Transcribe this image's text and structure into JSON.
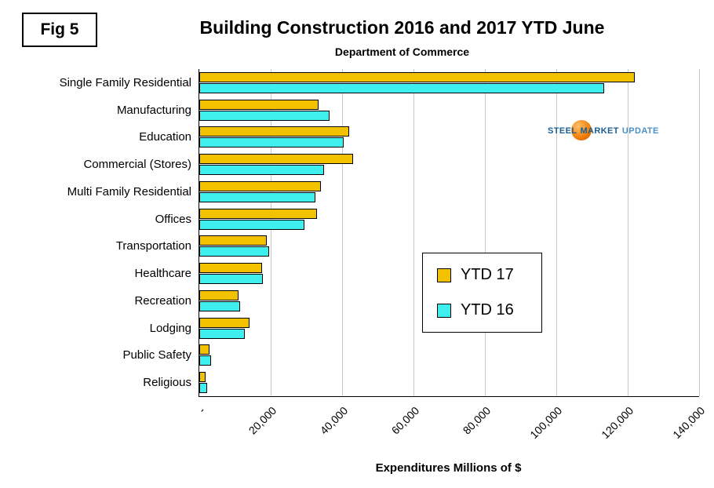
{
  "fig_label": "Fig 5",
  "logo": {
    "steel": "STEEL",
    "market": "MARKET",
    "update": "UPDATE"
  },
  "chart_data": {
    "type": "bar",
    "orientation": "horizontal",
    "title": "Building Construction 2016 and 2017 YTD June",
    "subtitle": "Department of Commerce",
    "xlabel": "Expenditures Millions of $",
    "xlim": [
      0,
      140000
    ],
    "x_tick_labels": [
      "-",
      "20,000",
      "40,000",
      "60,000",
      "80,000",
      "100,000",
      "120,000",
      "140,000"
    ],
    "x_tick_values": [
      0,
      20000,
      40000,
      60000,
      80000,
      100000,
      120000,
      140000
    ],
    "grid": true,
    "legend_position": "center-right",
    "categories": [
      "Single Family Residential",
      "Manufacturing",
      "Education",
      "Commercial (Stores)",
      "Multi Family Residential",
      "Offices",
      "Transportation",
      "Healthcare",
      "Recreation",
      "Lodging",
      "Public Safety",
      "Religious"
    ],
    "series": [
      {
        "name": "YTD 17",
        "color": "#F2C100",
        "values": [
          122000,
          33500,
          42000,
          43000,
          34000,
          33000,
          19000,
          17500,
          11000,
          14000,
          2900,
          1800
        ]
      },
      {
        "name": "YTD 16",
        "color": "#3FEFEF",
        "values": [
          113500,
          36500,
          40500,
          35000,
          32500,
          29500,
          19500,
          17800,
          11500,
          12800,
          3300,
          2100
        ]
      }
    ]
  }
}
